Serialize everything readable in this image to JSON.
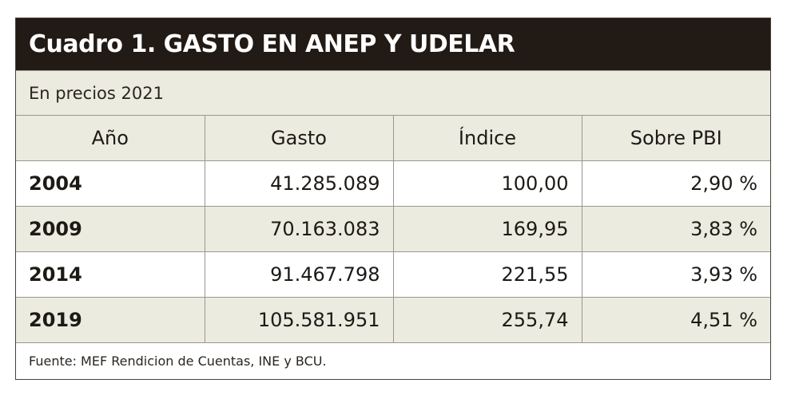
{
  "title": "Cuadro 1. GASTO EN ANEP Y UDELAR",
  "subtitle": "En precios 2021",
  "table": {
    "headers": [
      "Año",
      "Gasto",
      "Índice",
      "Sobre PBI"
    ],
    "rows": [
      [
        "2004",
        "41.285.089",
        "100,00",
        "2,90 %"
      ],
      [
        "2009",
        "70.163.083",
        "169,95",
        "3,83 %"
      ],
      [
        "2014",
        "91.467.798",
        "221,55",
        "3,93 %"
      ],
      [
        "2019",
        "105.581.951",
        "255,74",
        "4,51 %"
      ]
    ]
  },
  "source": "Fuente: MEF Rendicion de Cuentas, INE y BCU.",
  "colors": {
    "title_background": "#221a14",
    "band_background": "#ecebe0",
    "border": "#9b968c"
  }
}
